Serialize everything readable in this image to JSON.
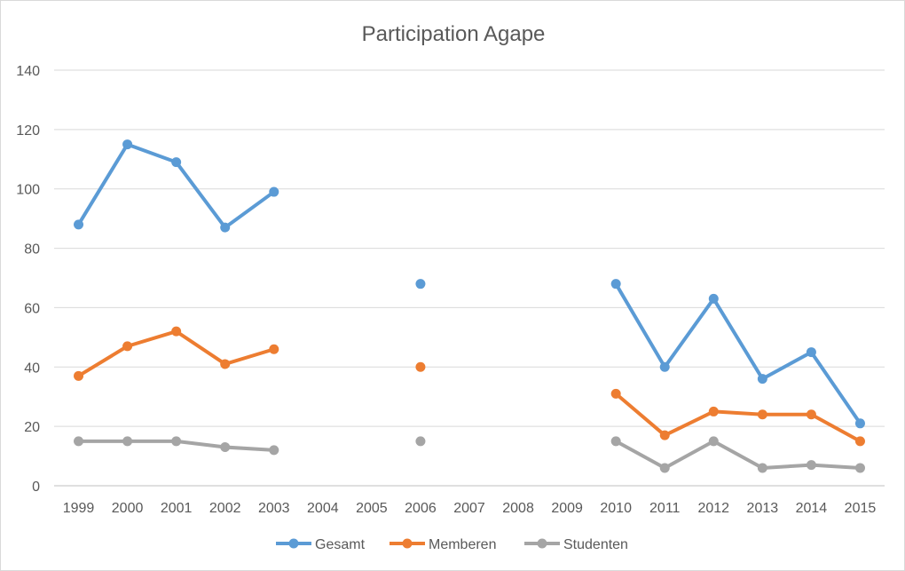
{
  "chart_data": {
    "type": "line",
    "title": "Participation Agape",
    "xlabel": "",
    "ylabel": "",
    "categories": [
      "1999",
      "2000",
      "2001",
      "2002",
      "2003",
      "2004",
      "2005",
      "2006",
      "2007",
      "2008",
      "2009",
      "2010",
      "2011",
      "2012",
      "2013",
      "2014",
      "2015"
    ],
    "ylim": [
      0,
      140
    ],
    "yticks": [
      0,
      20,
      40,
      60,
      80,
      100,
      120,
      140
    ],
    "grid": true,
    "legend": "bottom",
    "series": [
      {
        "name": "Gesamt",
        "color": "#5b9bd5",
        "values": [
          88,
          115,
          109,
          87,
          99,
          null,
          null,
          68,
          null,
          null,
          null,
          68,
          40,
          63,
          36,
          45,
          21
        ]
      },
      {
        "name": "Memberen",
        "color": "#ed7d31",
        "values": [
          37,
          47,
          52,
          41,
          46,
          null,
          null,
          40,
          null,
          null,
          null,
          31,
          17,
          25,
          24,
          24,
          15
        ]
      },
      {
        "name": "Studenten",
        "color": "#a5a5a5",
        "values": [
          15,
          15,
          15,
          13,
          12,
          null,
          null,
          15,
          null,
          null,
          null,
          15,
          6,
          15,
          6,
          7,
          6
        ]
      }
    ]
  }
}
